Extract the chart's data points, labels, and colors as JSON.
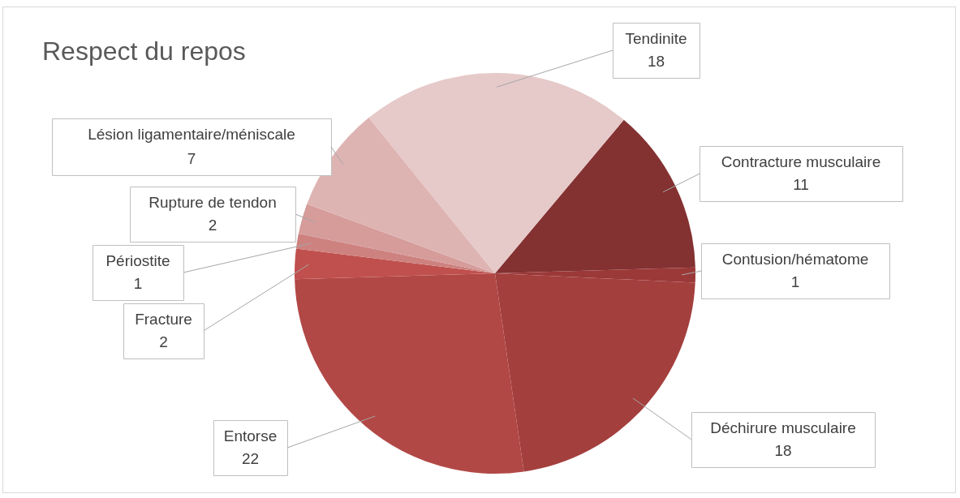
{
  "chart_data": {
    "type": "pie",
    "title": "Respect du repos",
    "categories": [
      "Contracture musculaire",
      "Contusion/hématome",
      "Déchirure musculaire",
      "Entorse",
      "Fracture",
      "Périostite",
      "Rupture de tendon",
      "Lésion ligamentaire/méniscale",
      "Tendinite"
    ],
    "values": [
      11,
      1,
      18,
      22,
      2,
      1,
      2,
      7,
      18
    ],
    "colors": [
      "#843132",
      "#9b3938",
      "#a33f3d",
      "#b14846",
      "#c0504d",
      "#cd8280",
      "#d59c9a",
      "#deb4b3",
      "#e6c9c9"
    ],
    "data_labels": true,
    "legend": false
  }
}
